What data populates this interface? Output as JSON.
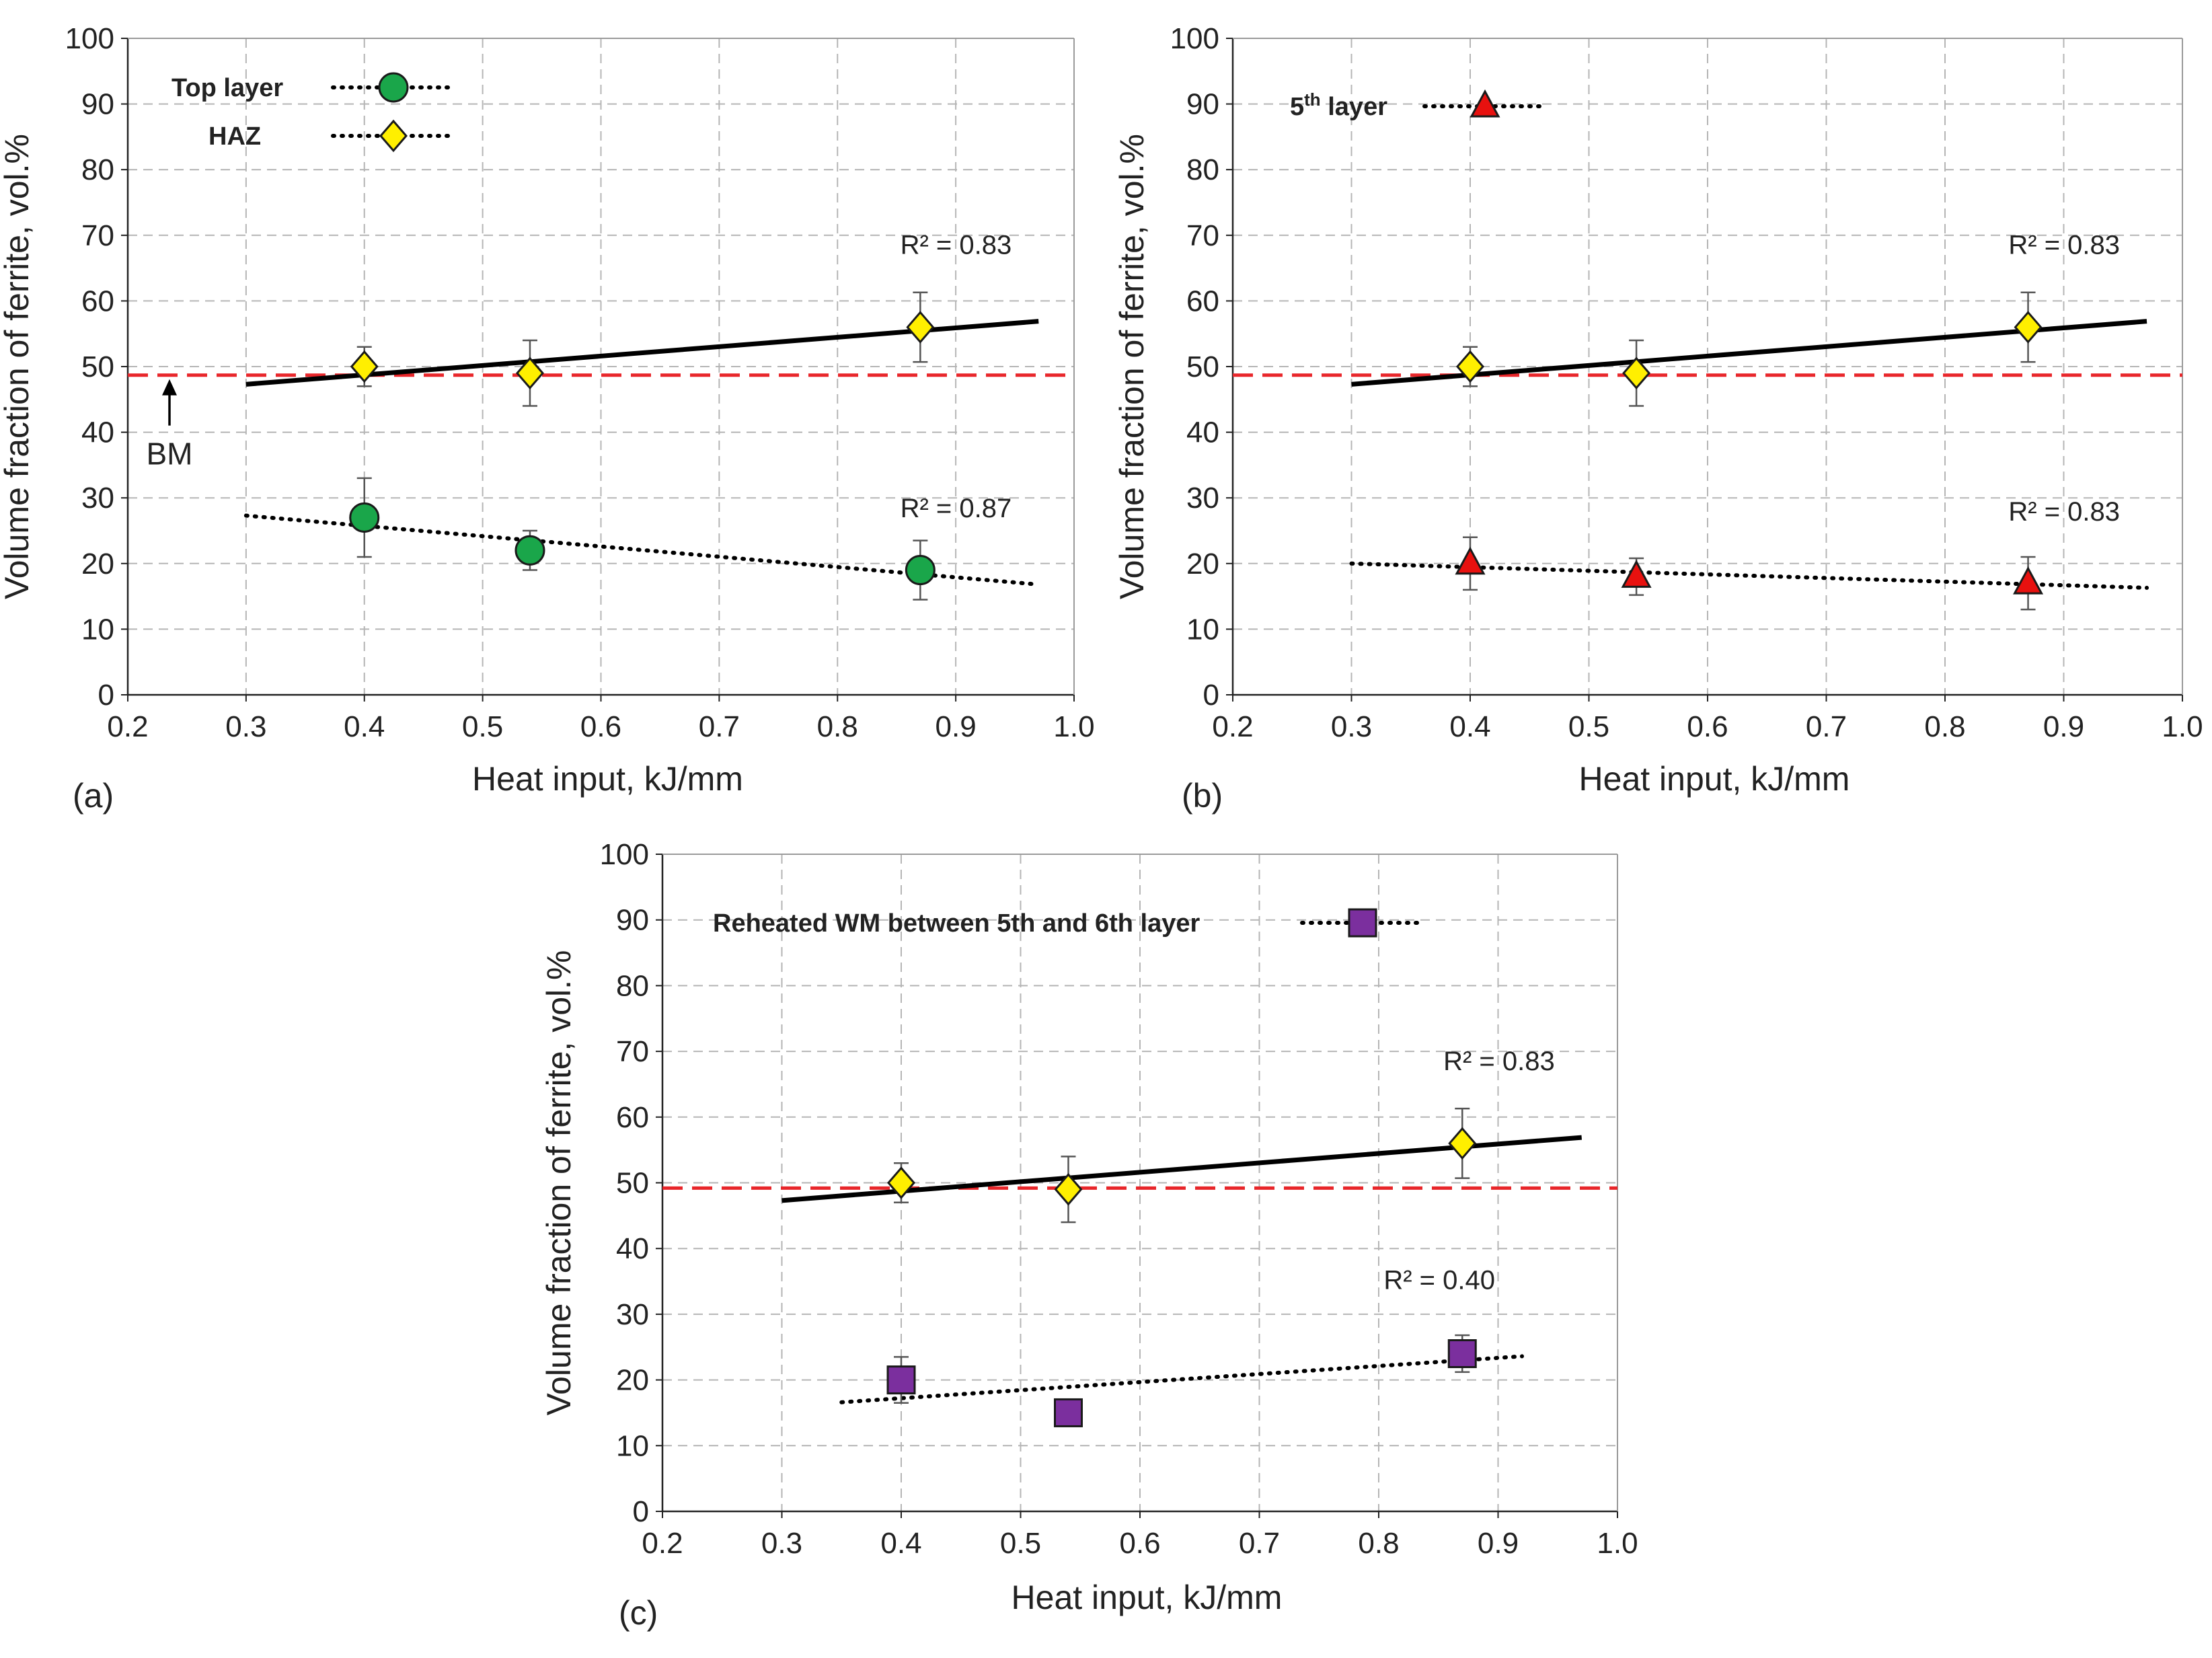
{
  "chart_data": [
    {
      "panel": "(a)",
      "type": "scatter",
      "xlabel": "Heat input, kJ/mm",
      "ylabel": "Volume fraction of ferrite, vol.%",
      "xlim": [
        0.2,
        1.0
      ],
      "ylim": [
        0,
        100
      ],
      "xticks": [
        "0.2",
        "0.3",
        "0.4",
        "0.5",
        "0.6",
        "0.7",
        "0.8",
        "0.9",
        "1.0"
      ],
      "yticks": [
        "0",
        "10",
        "20",
        "30",
        "40",
        "50",
        "60",
        "70",
        "80",
        "90",
        "100"
      ],
      "grid": true,
      "legend_position": "top-left",
      "series": [
        {
          "name": "Top layer",
          "marker": "circle",
          "color": "#1aa64a",
          "x": [
            0.4,
            0.54,
            0.87
          ],
          "y": [
            27,
            22,
            19
          ],
          "err": [
            6,
            3,
            4.5
          ],
          "trend": {
            "style": "dotted",
            "x": [
              0.3,
              0.97
            ],
            "y": [
              27.3,
              16.8
            ],
            "r2_label": "R² = 0.87"
          }
        },
        {
          "name": "HAZ",
          "marker": "diamond",
          "color": "#ffef00",
          "x": [
            0.4,
            0.54,
            0.87
          ],
          "y": [
            50,
            49,
            56
          ],
          "err": [
            3,
            5,
            5.3
          ],
          "trend": {
            "style": "solid",
            "x": [
              0.3,
              0.97
            ],
            "y": [
              47.3,
              56.9
            ],
            "r2_label": "R² = 0.83"
          }
        }
      ],
      "reference_line": {
        "y": 48.7,
        "color": "#e8262a",
        "label": "BM"
      }
    },
    {
      "panel": "(b)",
      "type": "scatter",
      "xlabel": "Heat input, kJ/mm",
      "ylabel": "Volume fraction of ferrite, vol.%",
      "xlim": [
        0.2,
        1.0
      ],
      "ylim": [
        0,
        100
      ],
      "xticks": [
        "0.2",
        "0.3",
        "0.4",
        "0.5",
        "0.6",
        "0.7",
        "0.8",
        "0.9",
        "1.0"
      ],
      "yticks": [
        "0",
        "10",
        "20",
        "30",
        "40",
        "50",
        "60",
        "70",
        "80",
        "90",
        "100"
      ],
      "grid": true,
      "legend_position": "top-left",
      "series": [
        {
          "name": "5",
          "name_sup": "th",
          "name_suffix": " layer",
          "marker": "triangle",
          "color": "#e8110f",
          "x": [
            0.4,
            0.54,
            0.87
          ],
          "y": [
            20,
            18,
            17
          ],
          "err": [
            4,
            2.8,
            4
          ],
          "trend": {
            "style": "dotted",
            "x": [
              0.3,
              0.97
            ],
            "y": [
              20.0,
              16.3
            ],
            "r2_label": "R² = 0.83"
          }
        },
        {
          "name": "HAZ",
          "marker": "diamond",
          "color": "#ffef00",
          "in_legend": false,
          "x": [
            0.4,
            0.54,
            0.87
          ],
          "y": [
            50,
            49,
            56
          ],
          "err": [
            3,
            5,
            5.3
          ],
          "trend": {
            "style": "solid",
            "x": [
              0.3,
              0.97
            ],
            "y": [
              47.3,
              56.9
            ],
            "r2_label": "R² = 0.83"
          }
        }
      ],
      "reference_line": {
        "y": 48.7,
        "color": "#e8262a"
      }
    },
    {
      "panel": "(c)",
      "type": "scatter",
      "xlabel": "Heat input, kJ/mm",
      "ylabel": "Volume fraction of ferrite, vol.%",
      "xlim": [
        0.2,
        1.0
      ],
      "ylim": [
        0,
        100
      ],
      "xticks": [
        "0.2",
        "0.3",
        "0.4",
        "0.5",
        "0.6",
        "0.7",
        "0.8",
        "0.9",
        "1.0"
      ],
      "yticks": [
        "0",
        "10",
        "20",
        "30",
        "40",
        "50",
        "60",
        "70",
        "80",
        "90",
        "100"
      ],
      "grid": true,
      "legend_position": "top-left",
      "series": [
        {
          "name": "Reheated WM between 5th and 6th layer",
          "marker": "square",
          "color": "#7b2f9e",
          "x": [
            0.4,
            0.54,
            0.87
          ],
          "y": [
            20,
            15,
            24
          ],
          "err": [
            3.5,
            0,
            2.8
          ],
          "trend": {
            "style": "dotted",
            "x": [
              0.35,
              0.92
            ],
            "y": [
              16.6,
              23.6
            ],
            "r2_label": "R² = 0.40"
          }
        },
        {
          "name": "HAZ",
          "marker": "diamond",
          "color": "#ffef00",
          "in_legend": false,
          "x": [
            0.4,
            0.54,
            0.87
          ],
          "y": [
            50,
            49,
            56
          ],
          "err": [
            3,
            5,
            5.3
          ],
          "trend": {
            "style": "solid",
            "x": [
              0.3,
              0.97
            ],
            "y": [
              47.3,
              56.9
            ],
            "r2_label": "R² = 0.83"
          }
        }
      ],
      "reference_line": {
        "y": 49.2,
        "color": "#e8262a"
      }
    }
  ]
}
